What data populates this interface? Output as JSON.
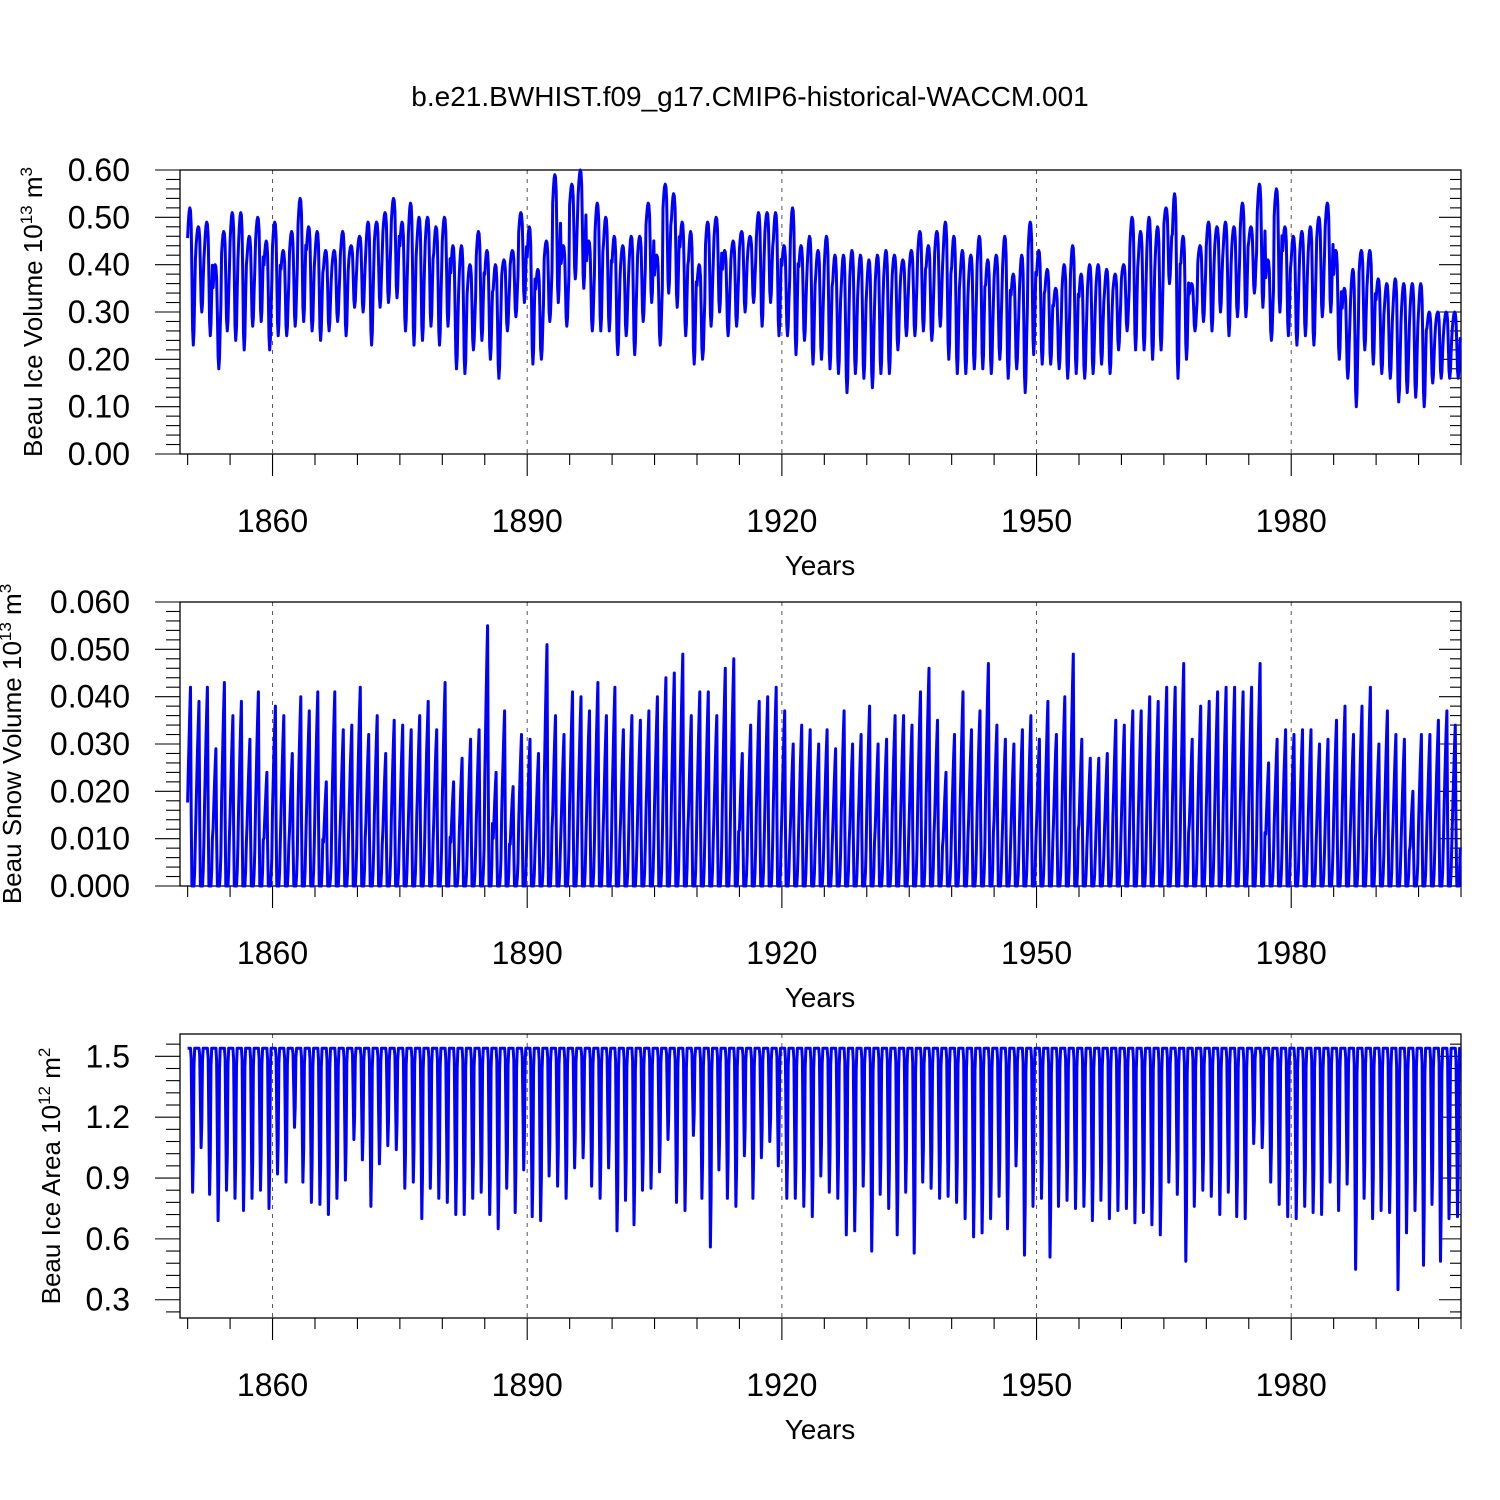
{
  "title": "b.e21.BWHIST.f09_g17.CMIP6-historical-WACCM.001",
  "colors": {
    "series": "#0000ff",
    "axes": "#000000",
    "grid": "#555555"
  },
  "chart_data": [
    {
      "type": "line",
      "name": "ice-volume",
      "ylabel_main": "Beau Ice Volume 10",
      "ylabel_exp": "13",
      "ylabel_unit": " m",
      "ylabel_unit_exp": "3",
      "xlabel": "Years",
      "xlim": [
        1849.1,
        2000
      ],
      "ylim": [
        0.0,
        0.6
      ],
      "xticks": [
        1860,
        1890,
        1920,
        1950,
        1980
      ],
      "xtick_labels": [
        "1860",
        "1890",
        "1920",
        "1950",
        "1980"
      ],
      "yticks": [
        0.0,
        0.1,
        0.2,
        0.3,
        0.4,
        0.5,
        0.6
      ],
      "ytick_labels": [
        "0.00",
        "0.10",
        "0.20",
        "0.30",
        "0.40",
        "0.50",
        "0.60"
      ],
      "grid": "vertical dashed at major x ticks",
      "series": [
        {
          "name": "Beau Ice Volume (monthly)",
          "x_start": 1850,
          "x_end": 2000,
          "annual_max": [
            0.52,
            0.48,
            0.49,
            0.4,
            0.47,
            0.51,
            0.51,
            0.46,
            0.5,
            0.45,
            0.49,
            0.43,
            0.47,
            0.54,
            0.48,
            0.47,
            0.43,
            0.43,
            0.47,
            0.44,
            0.46,
            0.49,
            0.49,
            0.51,
            0.54,
            0.49,
            0.53,
            0.5,
            0.5,
            0.48,
            0.5,
            0.44,
            0.44,
            0.4,
            0.47,
            0.43,
            0.4,
            0.41,
            0.43,
            0.51,
            0.48,
            0.39,
            0.45,
            0.59,
            0.44,
            0.57,
            0.6,
            0.45,
            0.53,
            0.5,
            0.46,
            0.44,
            0.46,
            0.46,
            0.53,
            0.42,
            0.57,
            0.55,
            0.49,
            0.47,
            0.4,
            0.49,
            0.5,
            0.43,
            0.45,
            0.47,
            0.46,
            0.51,
            0.51,
            0.51,
            0.44,
            0.52,
            0.44,
            0.46,
            0.43,
            0.46,
            0.42,
            0.42,
            0.43,
            0.42,
            0.41,
            0.42,
            0.43,
            0.42,
            0.41,
            0.43,
            0.47,
            0.44,
            0.47,
            0.49,
            0.46,
            0.43,
            0.42,
            0.46,
            0.41,
            0.42,
            0.46,
            0.38,
            0.42,
            0.49,
            0.43,
            0.39,
            0.35,
            0.4,
            0.44,
            0.38,
            0.4,
            0.4,
            0.39,
            0.38,
            0.4,
            0.5,
            0.47,
            0.5,
            0.48,
            0.52,
            0.55,
            0.46,
            0.36,
            0.44,
            0.49,
            0.48,
            0.49,
            0.48,
            0.53,
            0.48,
            0.57,
            0.41,
            0.56,
            0.48,
            0.46,
            0.47,
            0.48,
            0.5,
            0.53,
            0.43,
            0.35,
            0.39,
            0.43,
            0.43,
            0.37,
            0.36,
            0.37,
            0.36,
            0.36,
            0.36,
            0.3,
            0.3,
            0.3,
            0.3
          ],
          "annual_min": [
            0.23,
            0.3,
            0.25,
            0.18,
            0.26,
            0.24,
            0.22,
            0.27,
            0.28,
            0.22,
            0.25,
            0.25,
            0.27,
            0.28,
            0.26,
            0.24,
            0.26,
            0.28,
            0.25,
            0.31,
            0.3,
            0.23,
            0.31,
            0.32,
            0.33,
            0.26,
            0.23,
            0.24,
            0.27,
            0.23,
            0.27,
            0.18,
            0.17,
            0.22,
            0.24,
            0.2,
            0.16,
            0.26,
            0.29,
            0.32,
            0.19,
            0.2,
            0.28,
            0.32,
            0.27,
            0.37,
            0.35,
            0.26,
            0.26,
            0.26,
            0.21,
            0.25,
            0.21,
            0.28,
            0.32,
            0.23,
            0.34,
            0.31,
            0.25,
            0.19,
            0.2,
            0.27,
            0.3,
            0.25,
            0.27,
            0.3,
            0.32,
            0.27,
            0.32,
            0.25,
            0.25,
            0.21,
            0.24,
            0.19,
            0.2,
            0.18,
            0.17,
            0.13,
            0.17,
            0.16,
            0.14,
            0.17,
            0.17,
            0.22,
            0.25,
            0.25,
            0.26,
            0.24,
            0.27,
            0.2,
            0.17,
            0.17,
            0.18,
            0.18,
            0.17,
            0.2,
            0.16,
            0.18,
            0.13,
            0.21,
            0.19,
            0.19,
            0.18,
            0.16,
            0.17,
            0.16,
            0.17,
            0.19,
            0.17,
            0.22,
            0.26,
            0.22,
            0.22,
            0.2,
            0.22,
            0.36,
            0.16,
            0.2,
            0.26,
            0.28,
            0.26,
            0.3,
            0.25,
            0.29,
            0.29,
            0.34,
            0.31,
            0.24,
            0.3,
            0.25,
            0.23,
            0.25,
            0.23,
            0.29,
            0.3,
            0.2,
            0.16,
            0.1,
            0.22,
            0.19,
            0.17,
            0.16,
            0.11,
            0.13,
            0.12,
            0.1,
            0.15,
            0.16,
            0.16,
            0.16
          ]
        }
      ]
    },
    {
      "type": "line",
      "name": "snow-volume",
      "ylabel_main": "Beau Snow Volume 10",
      "ylabel_exp": "13",
      "ylabel_unit": " m",
      "ylabel_unit_exp": "3",
      "xlabel": "Years",
      "xlim": [
        1849.1,
        2000
      ],
      "ylim": [
        0.0,
        0.06
      ],
      "xticks": [
        1860,
        1890,
        1920,
        1950,
        1980
      ],
      "xtick_labels": [
        "1860",
        "1890",
        "1920",
        "1950",
        "1980"
      ],
      "yticks": [
        0.0,
        0.01,
        0.02,
        0.03,
        0.04,
        0.05,
        0.06
      ],
      "ytick_labels": [
        "0.000",
        "0.010",
        "0.020",
        "0.030",
        "0.040",
        "0.050",
        "0.060"
      ],
      "grid": "vertical dashed at major x ticks",
      "series": [
        {
          "name": "Beau Snow Volume (monthly)",
          "x_start": 1850,
          "x_end": 2000,
          "annual_max": [
            0.042,
            0.039,
            0.042,
            0.029,
            0.043,
            0.036,
            0.039,
            0.031,
            0.041,
            0.024,
            0.038,
            0.036,
            0.028,
            0.04,
            0.037,
            0.041,
            0.022,
            0.041,
            0.033,
            0.034,
            0.042,
            0.032,
            0.036,
            0.028,
            0.035,
            0.034,
            0.033,
            0.036,
            0.039,
            0.033,
            0.043,
            0.022,
            0.027,
            0.031,
            0.033,
            0.055,
            0.024,
            0.037,
            0.021,
            0.032,
            0.031,
            0.028,
            0.051,
            0.036,
            0.032,
            0.041,
            0.04,
            0.037,
            0.043,
            0.036,
            0.042,
            0.033,
            0.036,
            0.035,
            0.037,
            0.04,
            0.044,
            0.045,
            0.049,
            0.036,
            0.041,
            0.041,
            0.036,
            0.046,
            0.048,
            0.028,
            0.034,
            0.039,
            0.04,
            0.042,
            0.037,
            0.03,
            0.034,
            0.033,
            0.03,
            0.033,
            0.029,
            0.037,
            0.03,
            0.032,
            0.038,
            0.03,
            0.031,
            0.036,
            0.036,
            0.034,
            0.041,
            0.046,
            0.035,
            0.024,
            0.032,
            0.041,
            0.033,
            0.037,
            0.047,
            0.034,
            0.031,
            0.03,
            0.033,
            0.036,
            0.031,
            0.039,
            0.032,
            0.04,
            0.049,
            0.031,
            0.027,
            0.027,
            0.028,
            0.035,
            0.034,
            0.037,
            0.037,
            0.04,
            0.039,
            0.042,
            0.042,
            0.047,
            0.031,
            0.038,
            0.039,
            0.041,
            0.042,
            0.042,
            0.041,
            0.042,
            0.047,
            0.026,
            0.031,
            0.033,
            0.032,
            0.033,
            0.033,
            0.03,
            0.031,
            0.035,
            0.038,
            0.032,
            0.038,
            0.042,
            0.03,
            0.037,
            0.032,
            0.031,
            0.02,
            0.032,
            0.032,
            0.035,
            0.037,
            0.034
          ]
        }
      ]
    },
    {
      "type": "line",
      "name": "ice-area",
      "ylabel_main": "Beau Ice Area 10",
      "ylabel_exp": "12",
      "ylabel_unit": " m",
      "ylabel_unit_exp": "2",
      "xlabel": "Years",
      "xlim": [
        1849.1,
        2000
      ],
      "ylim": [
        0.21,
        1.61
      ],
      "xticks": [
        1860,
        1890,
        1920,
        1950,
        1980
      ],
      "xtick_labels": [
        "1860",
        "1890",
        "1920",
        "1950",
        "1980"
      ],
      "yticks": [
        0.3,
        0.6,
        0.9,
        1.2,
        1.5
      ],
      "ytick_labels": [
        "0.3",
        "0.6",
        "0.9",
        "1.2",
        "1.5"
      ],
      "grid": "vertical dashed at major x ticks",
      "series": [
        {
          "name": "Beau Ice Area (monthly)",
          "x_start": 1850,
          "x_end": 2000,
          "annual_max": 1.54,
          "annual_min": [
            0.83,
            1.05,
            0.82,
            0.69,
            0.84,
            0.8,
            0.74,
            0.8,
            0.84,
            0.75,
            0.92,
            0.88,
            1.15,
            0.88,
            0.78,
            0.77,
            0.72,
            0.8,
            0.89,
            1.09,
            0.99,
            0.76,
            0.97,
            1.06,
            1.04,
            0.85,
            0.88,
            0.7,
            0.85,
            0.8,
            0.78,
            0.72,
            0.72,
            0.8,
            0.83,
            0.72,
            0.65,
            0.85,
            0.73,
            0.94,
            0.71,
            0.69,
            0.91,
            0.86,
            0.8,
            0.95,
            1.0,
            0.86,
            0.8,
            0.95,
            0.64,
            0.79,
            0.67,
            0.84,
            0.85,
            0.93,
            1.09,
            0.78,
            0.74,
            1.11,
            0.8,
            0.56,
            0.94,
            0.8,
            0.76,
            1.01,
            0.8,
            1.0,
            1.08,
            0.96,
            0.8,
            0.8,
            0.76,
            0.71,
            0.91,
            0.83,
            0.8,
            0.62,
            0.64,
            0.86,
            0.54,
            0.82,
            0.75,
            0.62,
            0.83,
            0.53,
            0.88,
            0.85,
            0.8,
            0.81,
            0.78,
            0.7,
            0.61,
            0.63,
            0.7,
            0.81,
            0.65,
            0.96,
            0.52,
            0.76,
            0.8,
            0.51,
            0.76,
            0.79,
            0.75,
            0.76,
            0.69,
            0.79,
            0.7,
            0.74,
            0.75,
            0.68,
            0.73,
            0.67,
            0.62,
            0.88,
            0.82,
            0.49,
            0.76,
            0.84,
            0.81,
            0.72,
            0.83,
            0.71,
            0.7,
            1.07,
            1.05,
            0.88,
            0.77,
            0.71,
            0.7,
            0.76,
            0.73,
            0.72,
            0.88,
            0.74,
            0.87,
            0.45,
            0.8,
            0.7,
            0.74,
            0.73,
            0.35,
            0.63,
            0.74,
            0.47,
            0.77,
            0.49,
            0.7,
            0.71
          ]
        }
      ]
    }
  ]
}
